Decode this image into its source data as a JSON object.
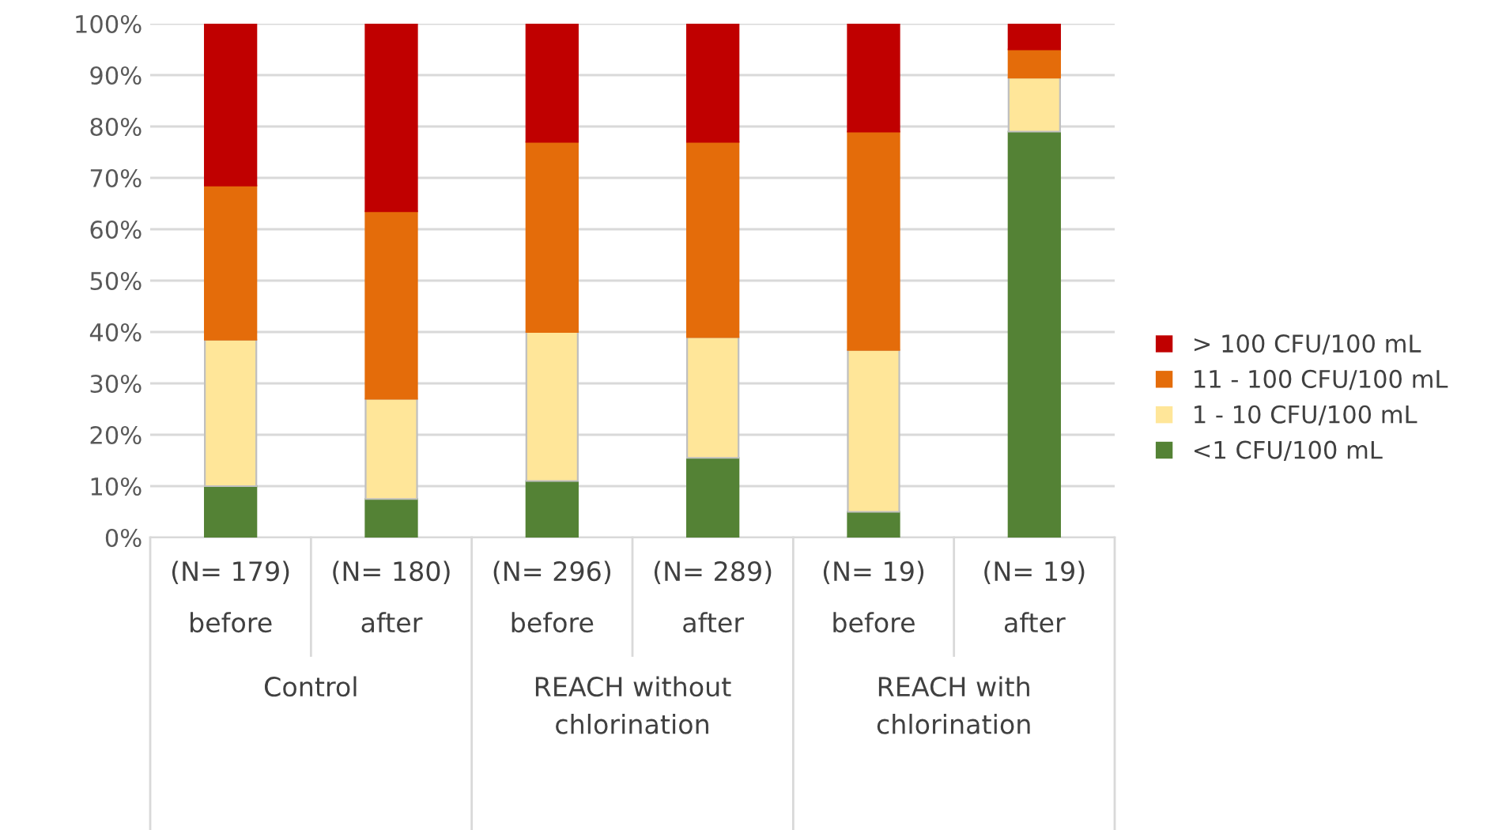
{
  "chart_data": {
    "type": "bar",
    "stacked": true,
    "categories": [
      "(N= 179)\nbefore",
      "(N= 180)\nafter",
      "(N= 296)\nbefore",
      "(N= 289)\nafter",
      "(N= 19)\nbefore",
      "(N= 19)\nafter"
    ],
    "series": [
      {
        "name": "<1 CFU/100 mL",
        "color": "#548235",
        "values": [
          10,
          7.5,
          11,
          15.5,
          5,
          79
        ]
      },
      {
        "name": "1 - 10 CFU/100 mL",
        "color": "#ffe699",
        "values": [
          28.5,
          19.5,
          29,
          23.5,
          31.5,
          10.5
        ]
      },
      {
        "name": "11 - 100 CFU/100 mL",
        "color": "#e46c0a",
        "values": [
          30,
          36.5,
          37,
          38,
          42.5,
          5.5
        ]
      },
      {
        "name": "> 100 CFU/100 mL",
        "color": "#c00000",
        "values": [
          31.5,
          36.5,
          23,
          23,
          21,
          5
        ]
      }
    ],
    "ylim": [
      0,
      100
    ],
    "yticks": [
      {
        "value": 0,
        "label": "0%"
      },
      {
        "value": 10,
        "label": "10%"
      },
      {
        "value": 20,
        "label": "20%"
      },
      {
        "value": 30,
        "label": "30%"
      },
      {
        "value": 40,
        "label": "40%"
      },
      {
        "value": 50,
        "label": "50%"
      },
      {
        "value": 60,
        "label": "60%"
      },
      {
        "value": 70,
        "label": "70%"
      },
      {
        "value": 80,
        "label": "80%"
      },
      {
        "value": 90,
        "label": "90%"
      },
      {
        "value": 100,
        "label": "100%"
      }
    ],
    "grid": "y",
    "legend": "right",
    "annotations": [
      "Control",
      "REACH without\nchlorination",
      "REACH with\nchlorination"
    ]
  }
}
